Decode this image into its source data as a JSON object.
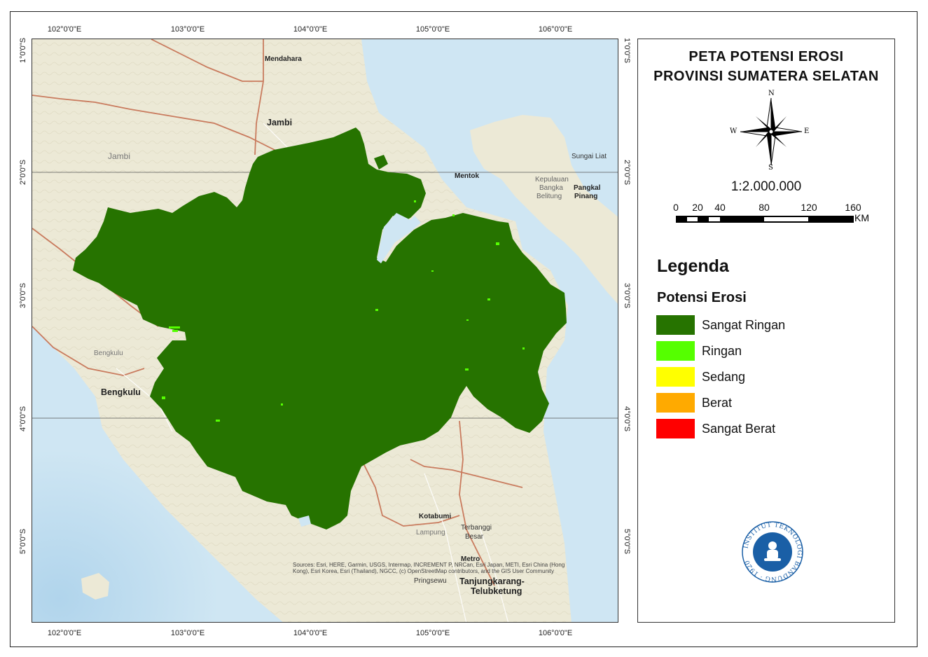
{
  "map": {
    "title_line1": "PETA POTENSI EROSI",
    "title_line2": "PROVINSI SUMATERA SELATAN",
    "north_arrow": {
      "n": "N",
      "s": "S",
      "e": "E",
      "w": "W"
    },
    "scale_ratio": "1:2.000.000",
    "scale_bar_labels": [
      "0",
      "20",
      "40",
      "80",
      "120",
      "160"
    ],
    "scale_unit": "KM",
    "legend_title": "Legenda",
    "legend_subtitle": "Potensi Erosi",
    "legend_items": [
      {
        "label": "Sangat Ringan",
        "color": "#267300"
      },
      {
        "label": "Ringan",
        "color": "#55ff00"
      },
      {
        "label": "Sedang",
        "color": "#ffff00"
      },
      {
        "label": "Berat",
        "color": "#ffaa00"
      },
      {
        "label": "Sangat Berat",
        "color": "#ff0000"
      }
    ],
    "longitude_labels": [
      "102°0'0\"E",
      "103°0'0\"E",
      "104°0'0\"E",
      "105°0'0\"E",
      "106°0'0\"E"
    ],
    "latitude_labels": [
      "1°0'0\"S",
      "2°0'0\"S",
      "3°0'0\"S",
      "4°0'0\"S",
      "5°0'0\"S"
    ],
    "places": {
      "mendahara": "Mendahara",
      "jambi_city": "Jambi",
      "jambi_prov": "Jambi",
      "mentok": "Mentok",
      "sungai_liat": "Sungai Liat",
      "kepulauan": "Kepulauan",
      "bangka": "Bangka",
      "belitung": "Belitung",
      "pangkal": "Pangkal",
      "pinang": "Pinang",
      "bengkulu_prov": "Bengkulu",
      "bengkulu_city": "Bengkulu",
      "kotabumi": "Kotabumi",
      "lampung": "Lampung",
      "terbanggi": "Terbanggi",
      "besar": "Besar",
      "metro": "Metro",
      "pringsewu": "Pringsewu",
      "tanjungkarang": "Tanjungkarang-",
      "telubketung": "Telubketung"
    },
    "attribution": "Sources: Esri, HERE, Garmin, USGS, Intermap, INCREMENT P, NRCan, Esri Japan, METI, Esri China (Hong Kong), Esri Korea, Esri (Thailand), NGCC, (c) OpenStreetMap contributors, and the GIS User Community",
    "logo_text": "INSTITUT TEKNOLOGI BANDUNG · 1920",
    "colors": {
      "sea": "#cfe6f3",
      "land": "#ece9d6",
      "province_fill": "#267300",
      "boundary": "#c97b5e",
      "logo_blue": "#1a5fa6"
    }
  }
}
